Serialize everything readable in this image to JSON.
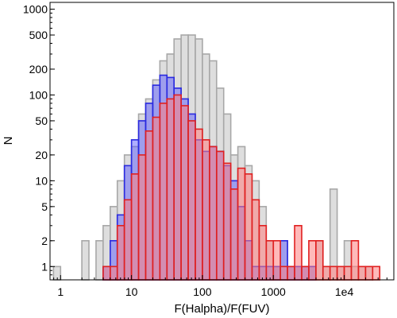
{
  "chart_data": {
    "type": "bar",
    "xlabel": "F(Halpha)/F(FUV)",
    "ylabel": "N",
    "x_scale": "log",
    "y_scale": "log",
    "xlim": [
      0.71,
      50000
    ],
    "ylim": [
      0.7,
      1200
    ],
    "x_ticks": [
      {
        "value": 1,
        "label": "1"
      },
      {
        "value": 10,
        "label": "10"
      },
      {
        "value": 100,
        "label": "100"
      },
      {
        "value": 1000,
        "label": "1000"
      },
      {
        "value": 10000,
        "label": "1e4"
      }
    ],
    "y_ticks": [
      {
        "value": 1,
        "label": "1"
      },
      {
        "value": 2,
        "label": "2"
      },
      {
        "value": 5,
        "label": "5"
      },
      {
        "value": 10,
        "label": "10"
      },
      {
        "value": 20,
        "label": "20"
      },
      {
        "value": 50,
        "label": "50"
      },
      {
        "value": 100,
        "label": "100"
      },
      {
        "value": 200,
        "label": "200"
      },
      {
        "value": 500,
        "label": "500"
      },
      {
        "value": 1000,
        "label": "1000"
      }
    ],
    "bin_log_start": -0.1,
    "bin_log_width": 0.1,
    "series": [
      {
        "color_fill": "#d8d8d8",
        "color_edge": "#a8a8a8",
        "fill_opacity": 0.85,
        "values": [
          1,
          0,
          0,
          0,
          2,
          0,
          2,
          3,
          5,
          10,
          20,
          25,
          60,
          90,
          150,
          250,
          300,
          450,
          500,
          500,
          450,
          300,
          250,
          120,
          60,
          20,
          25,
          15,
          10,
          5,
          2,
          1,
          2,
          1,
          1,
          1,
          1,
          2,
          1,
          8,
          1,
          2,
          1,
          1,
          1,
          0,
          0,
          0,
          0,
          0
        ]
      },
      {
        "color_fill": "#5050ff",
        "color_edge": "#2a2ae0",
        "fill_opacity": 0.45,
        "values": [
          0,
          0,
          0,
          0,
          0,
          0,
          0,
          1,
          2,
          4,
          15,
          30,
          50,
          80,
          130,
          170,
          160,
          120,
          90,
          60,
          30,
          22,
          25,
          22,
          15,
          10,
          5,
          2,
          1,
          1,
          1,
          1,
          2,
          1,
          1,
          1,
          1,
          0,
          0,
          0,
          0,
          0,
          0,
          0,
          0,
          0,
          0,
          0,
          0,
          0
        ]
      },
      {
        "color_fill": "#ff8080",
        "color_edge": "#e02020",
        "fill_opacity": 0.55,
        "values": [
          0,
          0,
          0,
          0,
          0,
          0,
          0,
          1,
          1,
          3,
          6,
          12,
          20,
          38,
          55,
          80,
          90,
          100,
          75,
          50,
          40,
          30,
          25,
          22,
          16,
          8,
          14,
          12,
          6,
          3,
          2,
          2,
          1,
          1,
          3,
          1,
          2,
          2,
          1,
          1,
          1,
          1,
          2,
          1,
          1,
          1,
          0,
          0,
          0,
          1
        ]
      }
    ]
  }
}
